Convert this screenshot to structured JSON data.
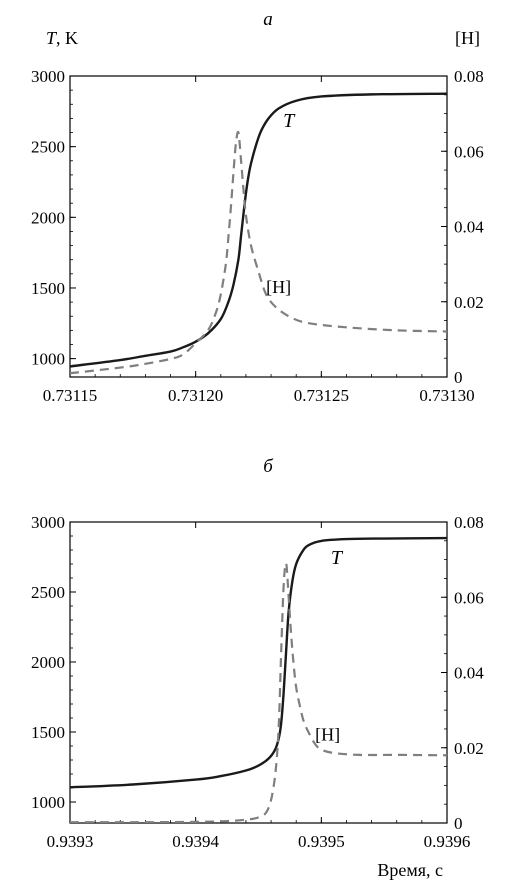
{
  "chart_data": [
    {
      "panel_label": "а",
      "type": "line",
      "y_left_label": "T, K",
      "y_right_label": "[H]",
      "x_label": "",
      "xlim": [
        0.73115,
        0.7313
      ],
      "ylim_left": [
        870,
        3000
      ],
      "ylim_right": [
        0,
        0.08
      ],
      "x_ticks": [
        "0.73115",
        "0.73120",
        "0.73125",
        "0.73130"
      ],
      "x_tick_values": [
        0.73115,
        0.7312,
        0.73125,
        0.7313
      ],
      "y_left_ticks": [
        "1000",
        "1500",
        "2000",
        "2500",
        "3000"
      ],
      "y_left_tick_values": [
        1000,
        1500,
        2000,
        2500,
        3000
      ],
      "y_right_ticks": [
        "0",
        "0.02",
        "0.04",
        "0.06",
        "0.08"
      ],
      "y_right_tick_values": [
        0,
        0.02,
        0.04,
        0.06,
        0.08
      ],
      "series": [
        {
          "name": "T",
          "axis": "left",
          "style": "solid",
          "color": "#1a1a1a",
          "x": [
            0.73115,
            0.73117,
            0.73118,
            0.73119,
            0.731195,
            0.7312,
            0.731205,
            0.73121,
            0.731213,
            0.731215,
            0.731217,
            0.731218,
            0.731219,
            0.73122,
            0.731221,
            0.731222,
            0.731224,
            0.731226,
            0.731229,
            0.731233,
            0.73124,
            0.73125,
            0.73127,
            0.7313
          ],
          "y": [
            945,
            990,
            1020,
            1050,
            1080,
            1120,
            1180,
            1280,
            1400,
            1520,
            1700,
            1860,
            2020,
            2170,
            2290,
            2380,
            2510,
            2610,
            2700,
            2770,
            2825,
            2855,
            2870,
            2875
          ]
        },
        {
          "name": "[H]",
          "axis": "right",
          "style": "dashed",
          "color": "#7f7f7f",
          "x": [
            0.73115,
            0.73117,
            0.73118,
            0.73119,
            0.731195,
            0.7312,
            0.731205,
            0.731208,
            0.73121,
            0.731212,
            0.731213,
            0.731214,
            0.731215,
            0.731216,
            0.731217,
            0.731218,
            0.731219,
            0.73122,
            0.731222,
            0.731225,
            0.731228,
            0.731232,
            0.731238,
            0.731245,
            0.73126,
            0.73128,
            0.7313
          ],
          "y": [
            0.001,
            0.0025,
            0.0035,
            0.0048,
            0.006,
            0.009,
            0.0125,
            0.017,
            0.022,
            0.03,
            0.037,
            0.045,
            0.054,
            0.062,
            0.065,
            0.058,
            0.05,
            0.043,
            0.035,
            0.028,
            0.022,
            0.0185,
            0.0158,
            0.0143,
            0.0132,
            0.0124,
            0.0121
          ]
        }
      ],
      "annotations": [
        {
          "text": "T",
          "x": 0.731237,
          "y_left": 2640
        },
        {
          "text": "[H]",
          "x": 0.731233,
          "y_left": 1465
        }
      ]
    },
    {
      "panel_label": "б",
      "type": "line",
      "y_left_label": "",
      "y_right_label": "",
      "x_label": "Время, с",
      "xlim": [
        0.9393,
        0.9396
      ],
      "ylim_left": [
        850,
        3000
      ],
      "ylim_right": [
        0,
        0.08
      ],
      "x_ticks": [
        "0.9393",
        "0.9394",
        "0.9395",
        "0.9396"
      ],
      "x_tick_values": [
        0.9393,
        0.9394,
        0.9395,
        0.9396
      ],
      "y_left_ticks": [
        "1000",
        "1500",
        "2000",
        "2500",
        "3000"
      ],
      "y_left_tick_values": [
        1000,
        1500,
        2000,
        2500,
        3000
      ],
      "y_right_ticks": [
        "0",
        "0.02",
        "0.04",
        "0.06",
        "0.08"
      ],
      "y_right_tick_values": [
        0,
        0.02,
        0.04,
        0.06,
        0.08
      ],
      "series": [
        {
          "name": "T",
          "axis": "left",
          "style": "solid",
          "color": "#1a1a1a",
          "x": [
            0.9393,
            0.93935,
            0.9394,
            0.93942,
            0.93944,
            0.93945,
            0.939458,
            0.939463,
            0.939466,
            0.939468,
            0.93947,
            0.939472,
            0.939474,
            0.939477,
            0.93948,
            0.939485,
            0.93949,
            0.9395,
            0.93952,
            0.93955,
            0.9396
          ],
          "y": [
            1105,
            1125,
            1160,
            1185,
            1225,
            1260,
            1310,
            1370,
            1450,
            1560,
            1780,
            2080,
            2360,
            2580,
            2700,
            2790,
            2835,
            2865,
            2878,
            2882,
            2885
          ]
        },
        {
          "name": "[H]",
          "axis": "right",
          "style": "dashed",
          "color": "#7f7f7f",
          "x": [
            0.9393,
            0.93935,
            0.9394,
            0.93943,
            0.93945,
            0.939458,
            0.939463,
            0.939466,
            0.939468,
            0.93947,
            0.939472,
            0.939474,
            0.939476,
            0.939478,
            0.93948,
            0.939483,
            0.939486,
            0.93949,
            0.939495,
            0.9395,
            0.93951,
            0.93953,
            0.93956,
            0.9396
          ],
          "y": [
            0.0002,
            0.0002,
            0.0003,
            0.0006,
            0.0015,
            0.004,
            0.012,
            0.025,
            0.045,
            0.063,
            0.069,
            0.06,
            0.05,
            0.042,
            0.036,
            0.031,
            0.027,
            0.024,
            0.021,
            0.0195,
            0.0186,
            0.0181,
            0.0181,
            0.018
          ]
        }
      ],
      "annotations": [
        {
          "text": "T",
          "x": 0.939512,
          "y_left": 2700
        },
        {
          "text": "[H]",
          "x": 0.939505,
          "y_left": 1440
        }
      ]
    }
  ]
}
